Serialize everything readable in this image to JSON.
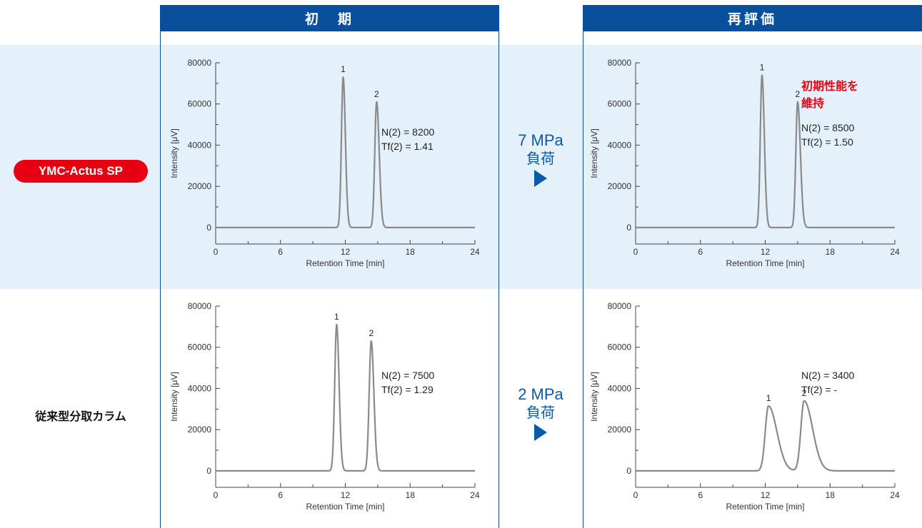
{
  "headers": {
    "initial": "初　期",
    "reeval": "再評価"
  },
  "rows": {
    "ymc_label": "YMC-Actus SP",
    "conv_label": "従来型分取カラム"
  },
  "arrows": {
    "top": {
      "pressure": "7 MPa",
      "load": "負荷"
    },
    "bottom": {
      "pressure": "2 MPa",
      "load": "負荷"
    }
  },
  "colors": {
    "header_bg": "#0a4f9c",
    "band_bg": "#e4f1fa",
    "pill_bg": "#e60012",
    "highlight_text": "#e60012",
    "arrow": "#0a5aa8",
    "trace": "#8a8a8a"
  },
  "chart_data": [
    {
      "id": "ymc_initial",
      "type": "line",
      "xlabel": "Retention Time [min]",
      "ylabel": "Intensity [μV]",
      "xlim": [
        0,
        24
      ],
      "ylim": [
        -8000,
        80000
      ],
      "xticks": [
        0,
        6,
        12,
        18,
        24
      ],
      "yticks": [
        0,
        20000,
        40000,
        60000,
        80000
      ],
      "peaks": [
        {
          "label": "1",
          "t": 11.8,
          "height": 73000,
          "sigma": 0.16,
          "tail": 1.3
        },
        {
          "label": "2",
          "t": 14.9,
          "height": 61000,
          "sigma": 0.17,
          "tail": 1.41
        }
      ],
      "annotation_lines": [
        "N(2)  = 8200",
        "Tf(2) = 1.41"
      ],
      "highlight_lines": []
    },
    {
      "id": "ymc_reeval",
      "type": "line",
      "xlabel": "Retention Time [min]",
      "ylabel": "Intensity [μV]",
      "xlim": [
        0,
        24
      ],
      "ylim": [
        -8000,
        80000
      ],
      "xticks": [
        0,
        6,
        12,
        18,
        24
      ],
      "yticks": [
        0,
        20000,
        40000,
        60000,
        80000
      ],
      "peaks": [
        {
          "label": "1",
          "t": 11.7,
          "height": 74000,
          "sigma": 0.16,
          "tail": 1.35
        },
        {
          "label": "2",
          "t": 15.0,
          "height": 61000,
          "sigma": 0.17,
          "tail": 1.5
        }
      ],
      "annotation_lines": [
        "N(2)  = 8500",
        "Tf(2) = 1.50"
      ],
      "highlight_lines": [
        "初期性能を",
        "維持"
      ]
    },
    {
      "id": "conv_initial",
      "type": "line",
      "xlabel": "Retention Time [min]",
      "ylabel": "Intensity [μV]",
      "xlim": [
        0,
        24
      ],
      "ylim": [
        -8000,
        80000
      ],
      "xticks": [
        0,
        6,
        12,
        18,
        24
      ],
      "yticks": [
        0,
        20000,
        40000,
        60000,
        80000
      ],
      "peaks": [
        {
          "label": "1",
          "t": 11.2,
          "height": 71000,
          "sigma": 0.18,
          "tail": 1.25
        },
        {
          "label": "2",
          "t": 14.4,
          "height": 63000,
          "sigma": 0.19,
          "tail": 1.29
        }
      ],
      "annotation_lines": [
        "N(2)  = 7500",
        "Tf(2) = 1.29"
      ],
      "highlight_lines": []
    },
    {
      "id": "conv_reeval",
      "type": "line",
      "xlabel": "Retention Time [min]",
      "ylabel": "Intensity [μV]",
      "xlim": [
        0,
        24
      ],
      "ylim": [
        -8000,
        80000
      ],
      "xticks": [
        0,
        6,
        12,
        18,
        24
      ],
      "yticks": [
        0,
        20000,
        40000,
        60000,
        80000
      ],
      "peaks": [
        {
          "label": "1",
          "t": 12.3,
          "height": 31500,
          "sigma": 0.3,
          "tail": 2.6
        },
        {
          "label": "2",
          "t": 15.6,
          "height": 34000,
          "sigma": 0.3,
          "tail": 2.6
        }
      ],
      "annotation_lines": [
        "N(2)  = 3400",
        "Tf(2) = -"
      ],
      "highlight_lines": []
    }
  ]
}
